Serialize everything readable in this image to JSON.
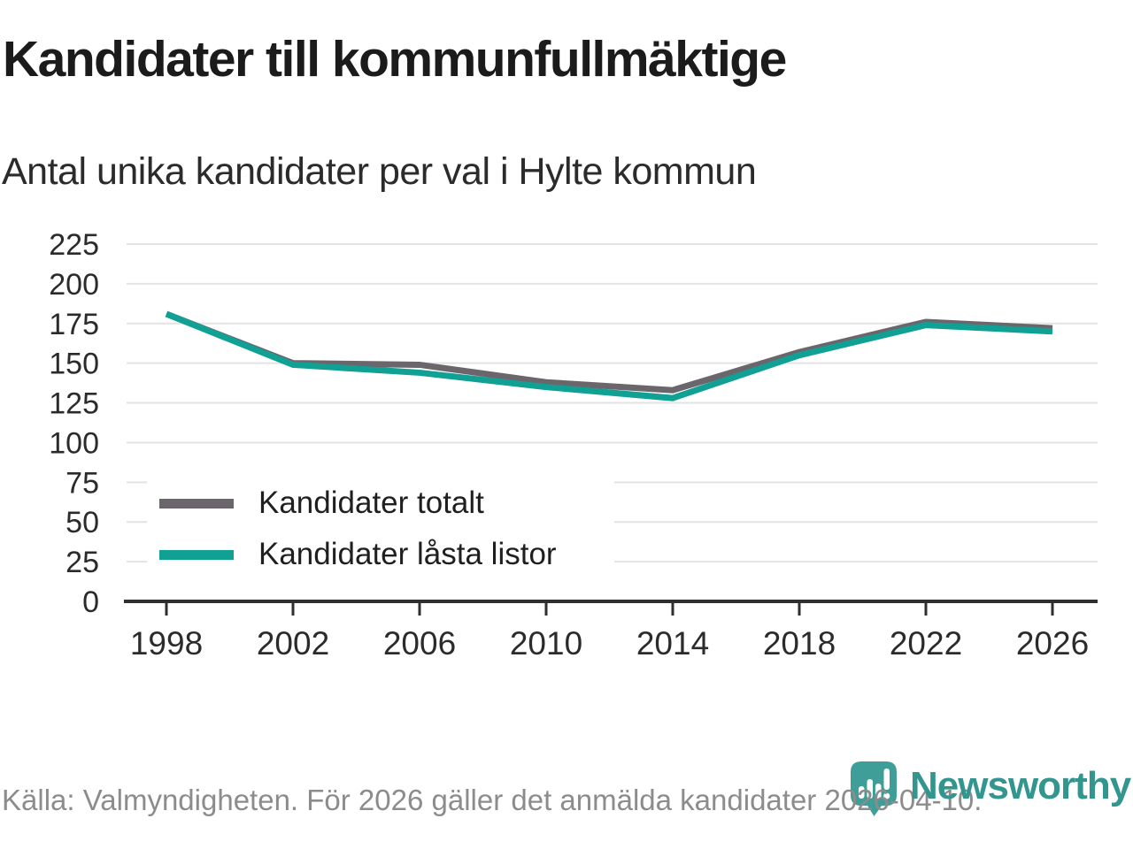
{
  "header": {
    "title": "Kandidater till kommunfullmäktige",
    "subtitle": "Antal unika kandidater per val i Hylte kommun"
  },
  "chart_data": {
    "type": "line",
    "categories": [
      "1998",
      "2002",
      "2006",
      "2010",
      "2014",
      "2018",
      "2022",
      "2026"
    ],
    "series": [
      {
        "name": "Kandidater totalt",
        "color": "#6b666b",
        "values": [
          181,
          150,
          149,
          138,
          133,
          157,
          176,
          172
        ]
      },
      {
        "name": "Kandidater låsta listor",
        "color": "#11a094",
        "values": [
          181,
          149,
          144,
          135,
          128,
          155,
          174,
          170
        ]
      }
    ],
    "title": "Kandidater till kommunfullmäktige",
    "subtitle": "Antal unika kandidater per val i Hylte kommun",
    "xlabel": "",
    "ylabel": "",
    "ylim": [
      0,
      225
    ],
    "ytick_step": 25,
    "grid": "horizontal",
    "legend_position": "inside-bottom-left"
  },
  "footer": {
    "source": "Källa: Valmyndigheten. För 2026 gäller det anmälda kandidater 2026-04-10."
  },
  "logo": {
    "wordmark": "Newsworthy",
    "icon": "newsworthy-pin-barchart-icon",
    "pin_color": "#3f9e97",
    "wordmark_color": "#33968e"
  },
  "colors": {
    "background": "#ffffff",
    "grid": "#e3e3e3",
    "axis": "#2f2f2f",
    "tick_label": "#2b2b2b",
    "title": "#1b1b1b",
    "subtitle": "#2b2b2b",
    "source_text": "#8c8c8c"
  }
}
